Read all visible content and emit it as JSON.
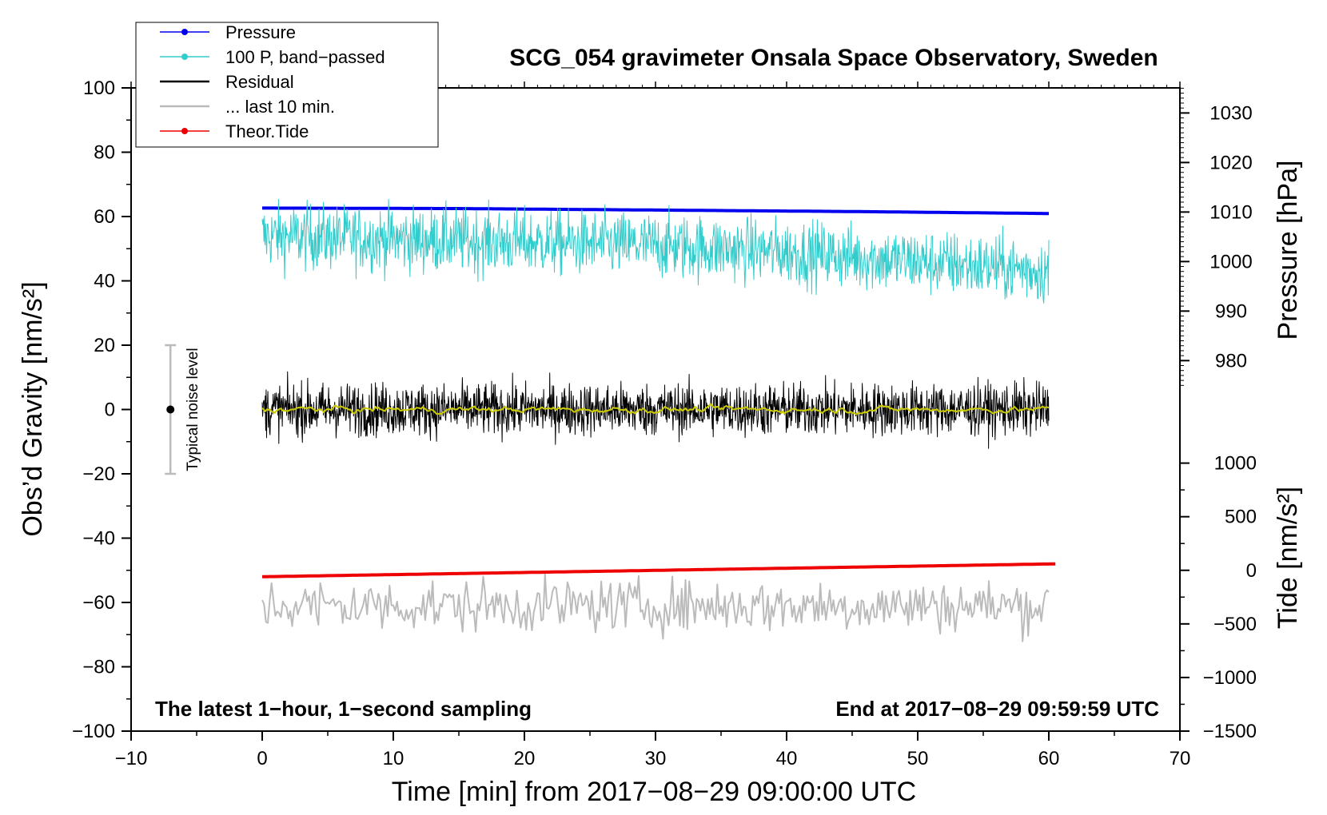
{
  "chart_data": {
    "type": "line",
    "title": "SCG_054 gravimeter Onsala Space Observatory, Sweden",
    "xlabel": "Time [min] from 2017−08−29 09:00:00 UTC",
    "ylabel_left": "Obs’d Gravity [nm/s²]",
    "ylabel_right_pressure": "Pressure [hPa]",
    "ylabel_right_tide": "Tide [nm/s²]",
    "xlim": [
      -10,
      70
    ],
    "ylim_left": [
      -100,
      100
    ],
    "x_ticks": [
      "−10",
      "0",
      "10",
      "20",
      "30",
      "40",
      "50",
      "60",
      "70"
    ],
    "x_tick_values": [
      -10,
      0,
      10,
      20,
      30,
      40,
      50,
      60,
      70
    ],
    "y_left_ticks": [
      "−100",
      "−80",
      "−60",
      "−40",
      "−20",
      "0",
      "20",
      "40",
      "60",
      "80",
      "100"
    ],
    "y_left_tick_values": [
      -100,
      -80,
      -60,
      -40,
      -20,
      0,
      20,
      40,
      60,
      80,
      100
    ],
    "pressure_axis": {
      "ticks": [
        "980",
        "990",
        "1000",
        "1010",
        "1020",
        "1030"
      ],
      "tick_values": [
        980,
        990,
        1000,
        1010,
        1020,
        1030
      ],
      "left_equiv_for_1000": 46,
      "left_per_hpa": 1.54
    },
    "tide_axis": {
      "ticks": [
        "−1500",
        "−1000",
        "−500",
        "0",
        "500",
        "1000"
      ],
      "tick_values": [
        -1500,
        -1000,
        -500,
        0,
        500,
        1000
      ],
      "left_equiv_for_0": -50,
      "left_per_unit": 0.03333
    },
    "series": [
      {
        "name": "Pressure",
        "color": "#0000ee",
        "axis": "pressure",
        "x": [
          0,
          15,
          30,
          45,
          60
        ],
        "values": [
          1010.8,
          1010.7,
          1010.4,
          1010.1,
          1009.7
        ]
      },
      {
        "name": "100 P, band−passed",
        "color": "#33cccc",
        "axis": "left",
        "x": [
          0,
          10,
          20,
          30,
          40,
          50,
          60
        ],
        "values": [
          54,
          53,
          52,
          51,
          49,
          46,
          43
        ],
        "noise_amplitude": 5
      },
      {
        "name": "Residual",
        "color": "#000000",
        "axis": "left",
        "x": [
          0,
          30,
          60
        ],
        "values": [
          0,
          0,
          0
        ],
        "noise_amplitude": 4
      },
      {
        "name": "Residual smoothed",
        "color": "#cccc00",
        "axis": "left",
        "x": [
          0,
          30,
          60
        ],
        "values": [
          0,
          0,
          0
        ],
        "noise_amplitude": 0.8
      },
      {
        "name": "... last 10 min.",
        "color": "#bbbbbb",
        "axis": "left",
        "x": [
          0,
          30,
          60
        ],
        "values": [
          -61,
          -61,
          -61
        ],
        "noise_amplitude": 4
      },
      {
        "name": "Theor.Tide",
        "color": "#ee0000",
        "axis": "tide",
        "x": [
          0,
          60.5
        ],
        "values": [
          -60,
          60
        ]
      }
    ],
    "noise_bar": {
      "x": -7,
      "center": 0,
      "low": -20,
      "high": 20,
      "label": "Typical noise level"
    },
    "legend": {
      "placement": "top-left",
      "entries": [
        {
          "label": "Pressure",
          "color": "#0000ee",
          "marker": true
        },
        {
          "label": "100 P, band−passed",
          "color": "#33cccc",
          "marker": true
        },
        {
          "label": "Residual",
          "color": "#000000",
          "marker": false
        },
        {
          "label": "... last 10 min.",
          "color": "#bbbbbb",
          "marker": false
        },
        {
          "label": "Theor.Tide",
          "color": "#ee0000",
          "marker": true
        }
      ]
    },
    "annotations": {
      "bottom_left": "The latest 1−hour, 1−second sampling",
      "bottom_right": "End at 2017−08−29 09:59:59 UTC"
    }
  }
}
